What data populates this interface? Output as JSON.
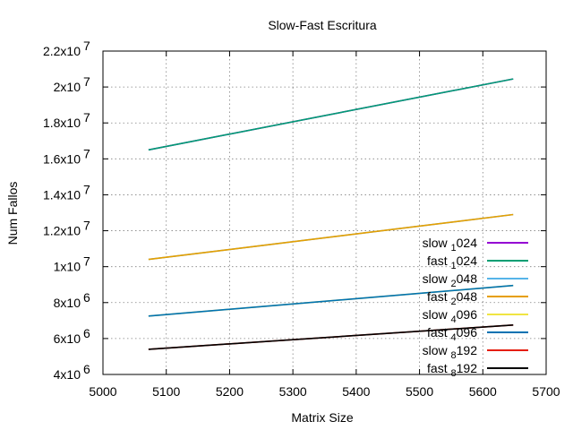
{
  "chart_data": {
    "type": "line",
    "title": "Slow-Fast Escritura",
    "xlabel": "Matrix Size",
    "ylabel": "Num Fallos",
    "xlim": [
      5000,
      5700
    ],
    "ylim": [
      4000000,
      22000000
    ],
    "grid": true,
    "legend_position": "bottom-right",
    "x_ticks": [
      {
        "value": 5000,
        "label": "5000"
      },
      {
        "value": 5100,
        "label": "5100"
      },
      {
        "value": 5200,
        "label": "5200"
      },
      {
        "value": 5300,
        "label": "5300"
      },
      {
        "value": 5400,
        "label": "5400"
      },
      {
        "value": 5500,
        "label": "5500"
      },
      {
        "value": 5600,
        "label": "5600"
      },
      {
        "value": 5700,
        "label": "5700"
      }
    ],
    "y_ticks": [
      {
        "value": 4000000,
        "mantissa": "4x10",
        "exp": "6"
      },
      {
        "value": 6000000,
        "mantissa": "6x10",
        "exp": "6"
      },
      {
        "value": 8000000,
        "mantissa": "8x10",
        "exp": "6"
      },
      {
        "value": 10000000,
        "mantissa": "1x10",
        "exp": "7"
      },
      {
        "value": 12000000,
        "mantissa": "1.2x10",
        "exp": "7"
      },
      {
        "value": 14000000,
        "mantissa": "1.4x10",
        "exp": "7"
      },
      {
        "value": 16000000,
        "mantissa": "1.6x10",
        "exp": "7"
      },
      {
        "value": 18000000,
        "mantissa": "1.8x10",
        "exp": "7"
      },
      {
        "value": 20000000,
        "mantissa": "2x10",
        "exp": "7"
      },
      {
        "value": 22000000,
        "mantissa": "2.2x10",
        "exp": "7"
      }
    ],
    "series": [
      {
        "name": "slow 1024",
        "legend": {
          "pre": "slow",
          "sub": "1",
          "post": "024"
        },
        "color": "#9400d3",
        "x": [
          5072,
          5648
        ],
        "y": [
          16500000,
          20450000
        ]
      },
      {
        "name": "fast 1024",
        "legend": {
          "pre": "fast",
          "sub": "1",
          "post": "024"
        },
        "color": "#009e73",
        "x": [
          5072,
          5648
        ],
        "y": [
          16500000,
          20450000
        ]
      },
      {
        "name": "slow 2048",
        "legend": {
          "pre": "slow",
          "sub": "2",
          "post": "048"
        },
        "color": "#56b4e9",
        "x": [
          5072,
          5648
        ],
        "y": [
          10400000,
          12900000
        ]
      },
      {
        "name": "fast 2048",
        "legend": {
          "pre": "fast",
          "sub": "2",
          "post": "048"
        },
        "color": "#e69f00",
        "x": [
          5072,
          5648
        ],
        "y": [
          10400000,
          12900000
        ]
      },
      {
        "name": "slow 4096",
        "legend": {
          "pre": "slow",
          "sub": "4",
          "post": "096"
        },
        "color": "#f0e442",
        "x": [
          5072,
          5648
        ],
        "y": [
          7250000,
          8950000
        ]
      },
      {
        "name": "fast 4096",
        "legend": {
          "pre": "fast",
          "sub": "4",
          "post": "096"
        },
        "color": "#0072b2",
        "x": [
          5072,
          5648
        ],
        "y": [
          7250000,
          8950000
        ]
      },
      {
        "name": "slow 8192",
        "legend": {
          "pre": "slow",
          "sub": "8",
          "post": "192"
        },
        "color": "#e51e10",
        "x": [
          5072,
          5648
        ],
        "y": [
          5400000,
          6750000
        ]
      },
      {
        "name": "fast 8192",
        "legend": {
          "pre": "fast",
          "sub": "8",
          "post": "192"
        },
        "color": "#000000",
        "x": [
          5072,
          5648
        ],
        "y": [
          5400000,
          6750000
        ]
      }
    ]
  }
}
